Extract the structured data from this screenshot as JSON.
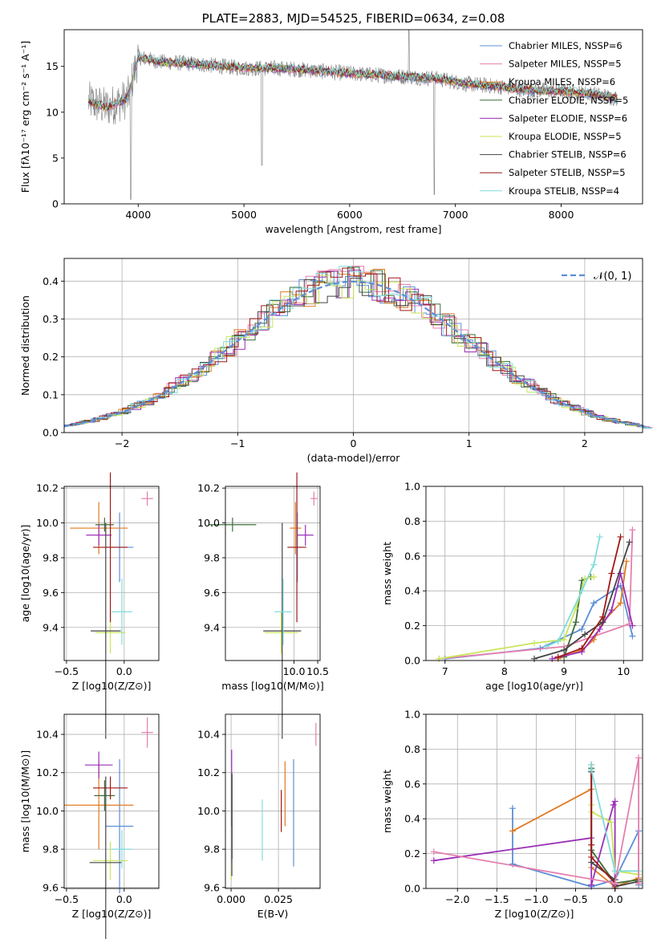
{
  "chart_data": [
    {
      "type": "line",
      "title": "PLATE=2883, MJD=54525, FIBERID=0634, z=0.08",
      "xlabel": "wavelength [Angstrom, rest frame]",
      "ylabel": "Flux [fλ10⁻¹⁷ erg cm⁻² s⁻¹ A⁻¹]",
      "xlim": [
        3300,
        8770
      ],
      "ylim": [
        0,
        19
      ],
      "xticks": [
        "4000",
        "5000",
        "6000",
        "7000",
        "8000"
      ],
      "yticks": [
        "0",
        "5",
        "10",
        "15"
      ],
      "spectrum_range": [
        3530,
        8530
      ],
      "series": [
        {
          "name": "Chabrier MILES, NSSP=6",
          "color": "#5b8fd6"
        },
        {
          "name": "Salpeter MILES, NSSP=5",
          "color": "#e67fae"
        },
        {
          "name": "Kroupa MILES, NSSP=6",
          "color": "#e07a22"
        },
        {
          "name": "Chabrier ELODIE, NSSP=5",
          "color": "#3d6d3a"
        },
        {
          "name": "Salpeter ELODIE, NSSP=6",
          "color": "#9b2fb6"
        },
        {
          "name": "Kroupa ELODIE, NSSP=5",
          "color": "#c8e65a"
        },
        {
          "name": "Chabrier STELIB, NSSP=6",
          "color": "#444444"
        },
        {
          "name": "Salpeter STELIB, NSSP=5",
          "color": "#a01818"
        },
        {
          "name": "Kroupa STELIB, NSSP=4",
          "color": "#7fdcdc"
        }
      ],
      "continuum": {
        "x": [
          3530,
          3700,
          3900,
          4000,
          4200,
          4500,
          4800,
          5000,
          5300,
          5600,
          5900,
          6200,
          6500,
          6800,
          7100,
          7400,
          7700,
          8000,
          8300,
          8530
        ],
        "y": [
          11.2,
          10.5,
          11.5,
          16.0,
          15.5,
          15.3,
          15.0,
          14.8,
          14.8,
          14.6,
          14.3,
          14.1,
          13.9,
          13.7,
          13.1,
          12.8,
          12.4,
          12.3,
          12.0,
          11.5
        ]
      }
    },
    {
      "type": "line",
      "xlabel": "(data-model)/error",
      "ylabel": "Normed distribution",
      "xlim": [
        -2.5,
        2.5
      ],
      "ylim": [
        0,
        0.46
      ],
      "xticks": [
        "−2",
        "−1",
        "0",
        "1",
        "2"
      ],
      "yticks": [
        "0.0",
        "0.1",
        "0.2",
        "0.3",
        "0.4"
      ],
      "legend": "𝒩(0, 1)",
      "gaussian": {
        "mean": 0,
        "sigma": 1
      }
    },
    {
      "type": "scatter",
      "xlabel": "Z [log10(Z/Z⊙)]",
      "ylabel": "age  [log10(age/yr)]",
      "xlim": [
        -0.52,
        0.3
      ],
      "ylim": [
        9.21,
        10.21
      ],
      "xticks": [
        "−0.5",
        "0.0"
      ],
      "yticks": [
        "9.4",
        "9.6",
        "9.8",
        "10.0",
        "10.2"
      ],
      "points": [
        {
          "color": "#5b8fd6",
          "x": -0.04,
          "y": 9.86,
          "xerr": 0.12,
          "yerr": 0.2
        },
        {
          "color": "#e07a22",
          "x": -0.22,
          "y": 9.97,
          "xerr": 0.25,
          "yerr": 0.15
        },
        {
          "color": "#3d6d3a",
          "x": -0.17,
          "y": 9.99,
          "xerr": 0.08,
          "yerr": 0.04
        },
        {
          "color": "#9b2fb6",
          "x": -0.22,
          "y": 9.93,
          "xerr": 0.11,
          "yerr": 0.06
        },
        {
          "color": "#c8e65a",
          "x": -0.12,
          "y": 9.37,
          "xerr": 0.13,
          "yerr": 0.12
        },
        {
          "color": "#444444",
          "x": -0.16,
          "y": 9.38,
          "xerr": 0.13,
          "yerr": 0.62
        },
        {
          "color": "#a01818",
          "x": -0.12,
          "y": 9.86,
          "xerr": 0.15,
          "yerr": 0.43
        },
        {
          "color": "#7fdcdc",
          "x": -0.02,
          "y": 9.49,
          "xerr": 0.09,
          "yerr": 0.19
        },
        {
          "color": "#e67fae",
          "x": 0.2,
          "y": 10.14,
          "xerr": 0.05,
          "yerr": 0.04
        }
      ]
    },
    {
      "type": "scatter",
      "xlabel": "mass [log10(M/M⊙)]",
      "xlim": [
        8.55,
        10.55
      ],
      "ylim": [
        9.21,
        10.21
      ],
      "xticks": [
        "10.0",
        "10.5"
      ],
      "yticks": [
        "9.4",
        "9.6",
        "9.8",
        "10.0",
        "10.2"
      ],
      "points": [
        {
          "color": "#5b8fd6",
          "x": 10.07,
          "y": 9.86,
          "xerr": 0.15,
          "yerr": 0.2
        },
        {
          "color": "#e07a22",
          "x": 10.03,
          "y": 9.97,
          "xerr": 0.12,
          "yerr": 0.15
        },
        {
          "color": "#3d6d3a",
          "x": 8.7,
          "y": 9.99,
          "xerr": 0.5,
          "yerr": 0.04
        },
        {
          "color": "#9b2fb6",
          "x": 10.24,
          "y": 9.93,
          "xerr": 0.17,
          "yerr": 0.06
        },
        {
          "color": "#c8e65a",
          "x": 9.73,
          "y": 9.37,
          "xerr": 0.35,
          "yerr": 0.12
        },
        {
          "color": "#444444",
          "x": 9.75,
          "y": 9.38,
          "xerr": 0.4,
          "yerr": 0.62
        },
        {
          "color": "#a01818",
          "x": 10.06,
          "y": 9.86,
          "xerr": 0.2,
          "yerr": 0.43
        },
        {
          "color": "#7fdcdc",
          "x": 9.77,
          "y": 9.49,
          "xerr": 0.18,
          "yerr": 0.19
        },
        {
          "color": "#e67fae",
          "x": 10.42,
          "y": 10.14,
          "xerr": 0.07,
          "yerr": 0.04
        }
      ]
    },
    {
      "type": "line",
      "xlabel": "age  [log10(age/yr)]",
      "ylabel": "mass weight",
      "xlim": [
        6.68,
        10.32
      ],
      "ylim": [
        0,
        1
      ],
      "xticks": [
        "7",
        "8",
        "9",
        "10"
      ],
      "yticks": [
        "0.0",
        "0.2",
        "0.4",
        "0.6",
        "0.8",
        "1.0"
      ],
      "series": [
        {
          "color": "#5b8fd6",
          "x": [
            7.0,
            8.6,
            9.3,
            9.5,
            9.95,
            10.15
          ],
          "y": [
            0.01,
            0.07,
            0.18,
            0.33,
            0.43,
            0.14
          ]
        },
        {
          "color": "#e67fae",
          "x": [
            6.9,
            9.0,
            10.1,
            10.15
          ],
          "y": [
            0.01,
            0.08,
            0.21,
            0.75
          ]
        },
        {
          "color": "#e07a22",
          "x": [
            8.9,
            9.3,
            9.5,
            9.65,
            9.95,
            10.05
          ],
          "y": [
            0.01,
            0.06,
            0.12,
            0.22,
            0.33,
            0.57
          ]
        },
        {
          "color": "#3d6d3a",
          "x": [
            9.0,
            9.2,
            9.3,
            9.45
          ],
          "y": [
            0.02,
            0.22,
            0.46,
            0.48
          ]
        },
        {
          "color": "#9b2fb6",
          "x": [
            8.8,
            9.3,
            9.6,
            9.8,
            9.95,
            10.15
          ],
          "y": [
            0.01,
            0.05,
            0.18,
            0.29,
            0.5,
            0.2
          ]
        },
        {
          "color": "#c8e65a",
          "x": [
            6.9,
            8.5,
            9.0,
            9.2,
            9.35,
            9.5
          ],
          "y": [
            0.01,
            0.1,
            0.12,
            0.3,
            0.47,
            0.48
          ]
        },
        {
          "color": "#444444",
          "x": [
            8.5,
            9.0,
            9.35,
            9.65,
            10.1
          ],
          "y": [
            0.01,
            0.06,
            0.15,
            0.22,
            0.68
          ]
        },
        {
          "color": "#a01818",
          "x": [
            8.9,
            9.3,
            9.65,
            9.8,
            9.95
          ],
          "y": [
            0.02,
            0.07,
            0.25,
            0.5,
            0.71
          ]
        },
        {
          "color": "#7fdcdc",
          "x": [
            8.7,
            8.9,
            9.3,
            9.5,
            9.6
          ],
          "y": [
            0.08,
            0.11,
            0.4,
            0.55,
            0.71
          ]
        }
      ]
    },
    {
      "type": "scatter",
      "xlabel": "Z [log10(Z/Z⊙)]",
      "ylabel": "mass [log10(M/M⊙)]",
      "xlim": [
        -0.52,
        0.3
      ],
      "ylim": [
        9.595,
        10.505
      ],
      "xticks": [
        "−0.5",
        "0.0"
      ],
      "yticks": [
        "9.6",
        "9.8",
        "10.0",
        "10.2",
        "10.4"
      ],
      "points": [
        {
          "color": "#5b8fd6",
          "x": -0.04,
          "y": 9.92,
          "xerr": 0.12,
          "yerr": 0.35
        },
        {
          "color": "#e07a22",
          "x": -0.22,
          "y": 10.03,
          "xerr": 0.3,
          "yerr": 0.23
        },
        {
          "color": "#3d6d3a",
          "x": -0.17,
          "y": 10.08,
          "xerr": 0.09,
          "yerr": 0.08
        },
        {
          "color": "#9b2fb6",
          "x": -0.22,
          "y": 10.24,
          "xerr": 0.12,
          "yerr": 0.07
        },
        {
          "color": "#c8e65a",
          "x": -0.12,
          "y": 9.74,
          "xerr": 0.15,
          "yerr": 0.1
        },
        {
          "color": "#444444",
          "x": -0.16,
          "y": 9.73,
          "xerr": 0.14,
          "yerr": 0.45
        },
        {
          "color": "#a01818",
          "x": -0.12,
          "y": 10.12,
          "xerr": 0.15,
          "yerr": 0.06
        },
        {
          "color": "#7fdcdc",
          "x": -0.02,
          "y": 9.8,
          "xerr": 0.09,
          "yerr": 0.1
        },
        {
          "color": "#e67fae",
          "x": 0.2,
          "y": 10.41,
          "xerr": 0.05,
          "yerr": 0.08
        }
      ]
    },
    {
      "type": "scatter",
      "xlabel": "E(B-V)",
      "xlim": [
        -0.003,
        0.047
      ],
      "ylim": [
        9.595,
        10.505
      ],
      "xticks": [
        "0.000",
        "0.025"
      ],
      "yticks": [
        "9.6",
        "9.8",
        "10.0",
        "10.2",
        "10.4"
      ],
      "points": [
        {
          "color": "#5b8fd6",
          "x": 0.033,
          "y": 9.99,
          "yerr": 0.28
        },
        {
          "color": "#e07a22",
          "x": 0.0285,
          "y": 10.09,
          "yerr": 0.17
        },
        {
          "color": "#3d6d3a",
          "x": 0.0005,
          "y": 9.97,
          "yerr": 0.22
        },
        {
          "color": "#9b2fb6",
          "x": 0.0003,
          "y": 10.12,
          "yerr": 0.2
        },
        {
          "color": "#c8e65a",
          "x": 0.0002,
          "y": 9.68,
          "yerr": 0.04
        },
        {
          "color": "#444444",
          "x": 0.0004,
          "y": 9.93,
          "yerr": 0.27
        },
        {
          "color": "#a01818",
          "x": 0.0265,
          "y": 10.0,
          "yerr": 0.11
        },
        {
          "color": "#7fdcdc",
          "x": 0.0165,
          "y": 9.9,
          "yerr": 0.16
        },
        {
          "color": "#e67fae",
          "x": 0.0448,
          "y": 10.4,
          "yerr": 0.06
        }
      ]
    },
    {
      "type": "line",
      "xlabel": "Z [log10(Z/Z⊙)]",
      "ylabel": "mass weight",
      "xlim": [
        -2.4,
        0.35
      ],
      "ylim": [
        0,
        1
      ],
      "xticks": [
        "−2.0",
        "−1.5",
        "−1.0",
        "−0.5",
        "0.0"
      ],
      "yticks": [
        "0.0",
        "0.2",
        "0.4",
        "0.6",
        "0.8",
        "1.0"
      ],
      "series": [
        {
          "color": "#5b8fd6",
          "x": [
            -1.3,
            -1.3,
            -0.3,
            0.0,
            0.3,
            0.3
          ],
          "y": [
            0.46,
            0.14,
            0.01,
            0.05,
            0.33,
            0.02
          ]
        },
        {
          "color": "#e07a22",
          "x": [
            -1.3,
            -0.3,
            -0.3,
            0.0,
            0.3,
            0.3
          ],
          "y": [
            0.33,
            0.57,
            0.12,
            0.01,
            0.06,
            0.03
          ]
        },
        {
          "color": "#3d6d3a",
          "x": [
            -0.3,
            -0.3,
            0.0,
            0.3
          ],
          "y": [
            0.69,
            0.22,
            0.03,
            0.05
          ]
        },
        {
          "color": "#9b2fb6",
          "x": [
            -2.3,
            -0.3,
            -0.3,
            -0.02,
            0.0,
            0.0
          ],
          "y": [
            0.16,
            0.29,
            0.02,
            0.48,
            0.5,
            0.02
          ]
        },
        {
          "color": "#c8e65a",
          "x": [
            -0.3,
            -0.3,
            -0.05,
            0.0,
            0.3
          ],
          "y": [
            0.48,
            0.44,
            0.38,
            0.1,
            0.08
          ]
        },
        {
          "color": "#444444",
          "x": [
            -0.3,
            -0.3,
            0.0,
            0.0,
            0.3
          ],
          "y": [
            0.67,
            0.15,
            0.05,
            0.01,
            0.04
          ]
        },
        {
          "color": "#a01818",
          "x": [
            -0.3,
            -0.3,
            -0.3,
            0.0,
            0.0
          ],
          "y": [
            0.71,
            0.25,
            0.18,
            0.03,
            0.0
          ]
        },
        {
          "color": "#7fdcdc",
          "x": [
            -0.3,
            -0.3,
            0.0,
            0.3
          ],
          "y": [
            0.71,
            0.68,
            0.1,
            0.1
          ]
        },
        {
          "color": "#e67fae",
          "x": [
            -2.3,
            0.0,
            0.3,
            0.3
          ],
          "y": [
            0.21,
            0.03,
            0.75,
            0.03
          ]
        }
      ]
    }
  ]
}
